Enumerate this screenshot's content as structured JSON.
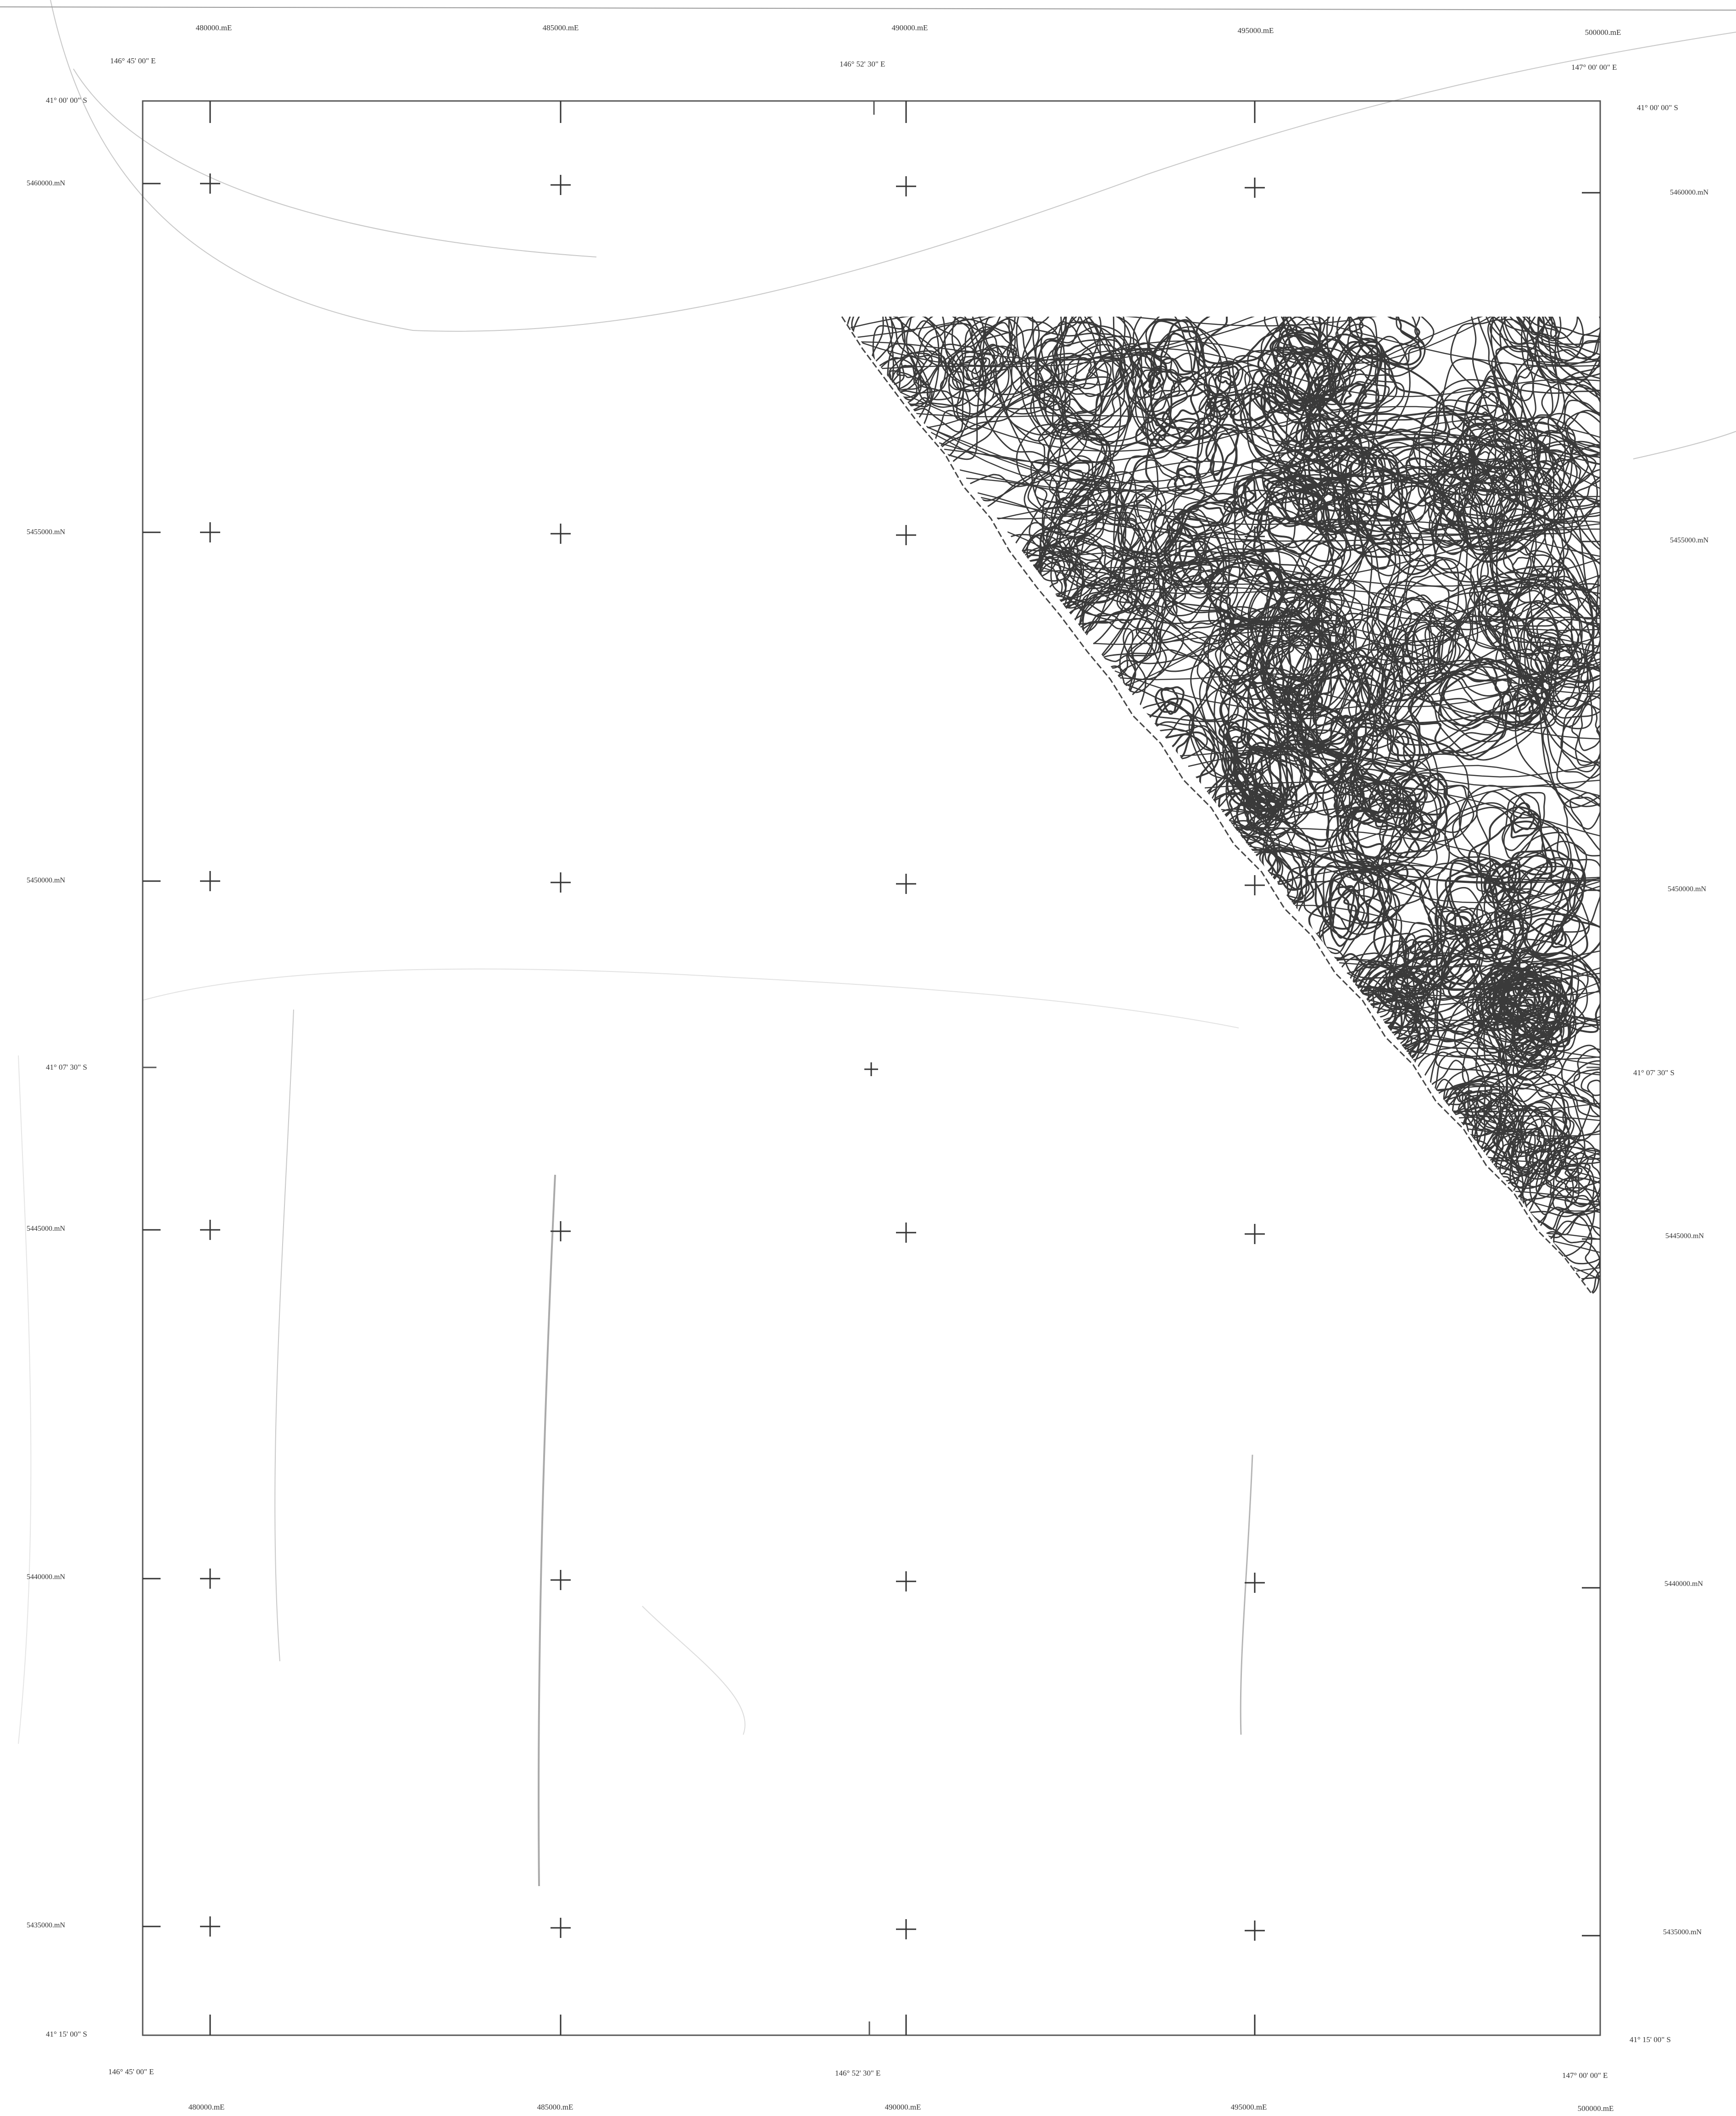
{
  "map": {
    "eastings_top": [
      "480000.mE",
      "485000.mE",
      "490000.mE",
      "495000.mE",
      "500000.mE"
    ],
    "eastings_bottom": [
      "480000.mE",
      "485000.mE",
      "490000.mE",
      "495000.mE",
      "500000.mE"
    ],
    "northings_left": [
      "5460000.mN",
      "5455000.mN",
      "5450000.mN",
      "5445000.mN",
      "5440000.mN",
      "5435000.mN"
    ],
    "northings_right": [
      "5460000.mN",
      "5455000.mN",
      "5450000.mN",
      "5445000.mN",
      "5440000.mN",
      "5435000.mN"
    ],
    "longitude_labels": {
      "west": "146° 45' 00\" E",
      "mid": "146° 52' 30\" E",
      "east": "147° 00' 00\" E"
    },
    "latitude_labels": {
      "north": "41° 00' 00\" S",
      "mid": "41° 07' 30\" S",
      "south": "41° 15' 00\" S"
    },
    "colors": {
      "frame": "#555555",
      "grid_cross": "#333333",
      "contour": "#3a3a3a",
      "label": "#333333"
    }
  }
}
